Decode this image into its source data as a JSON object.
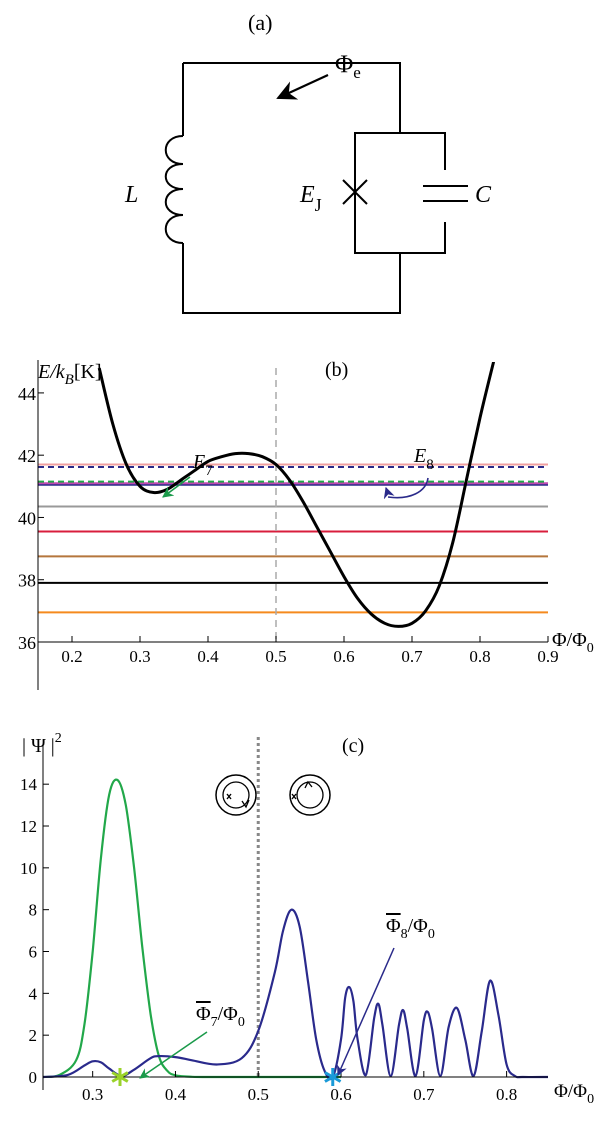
{
  "panel_a": {
    "label": "(a)",
    "flux_symbol": "Φ",
    "flux_sub": "e",
    "inductor": "L",
    "junction": "E",
    "junction_sub": "J",
    "capacitor": "C"
  },
  "panel_b": {
    "label": "(b)",
    "ylabel_main": "E/k",
    "ylabel_sub": "B",
    "ylabel_unit": "[K]",
    "xlabel": "Φ/Φ",
    "xlabel_sub": "0",
    "e7_main": "E",
    "e7_sub": "7",
    "e8_main": "E",
    "e8_sub": "8",
    "colors": {
      "potential": "#000000",
      "dashed_line": "#aaaaaa",
      "e7_arrow": "#1a9a4a",
      "e8_arrow": "#2a2a8a"
    }
  },
  "panel_c": {
    "label": "(c)",
    "ylabel": "| Ψ |",
    "ylabel_sup": "2",
    "xlabel": "Φ/Φ",
    "xlabel_sub": "0",
    "phi7_main": "Φ",
    "phi7_sub": "7",
    "phi7_tail": "/Φ",
    "phi7_tail_sub": "0",
    "phi8_main": "Φ",
    "phi8_sub": "8",
    "phi8_tail": "/Φ",
    "phi8_tail_sub": "0",
    "colors": {
      "psi7": "#22a84a",
      "psi8": "#2a2a8c",
      "star7": "#9ad22a",
      "star8": "#1a9ad8",
      "dotted": "#888888"
    }
  },
  "chart_data": [
    {
      "type": "line",
      "title": "(b)",
      "xlabel": "Φ/Φ0",
      "ylabel": "E/kB [K]",
      "xlim": [
        0.15,
        0.9
      ],
      "ylim": [
        36,
        44.8
      ],
      "x_ticks": [
        "0.2",
        "0.3",
        "0.4",
        "0.5",
        "0.6",
        "0.7",
        "0.8",
        "0.9"
      ],
      "y_ticks": [
        "36",
        "38",
        "40",
        "42",
        "44"
      ],
      "vertical_dashed_line_x": 0.5,
      "potential": {
        "x": [
          0.24,
          0.26,
          0.28,
          0.3,
          0.32,
          0.34,
          0.36,
          0.38,
          0.4,
          0.42,
          0.44,
          0.46,
          0.48,
          0.5,
          0.52,
          0.54,
          0.56,
          0.58,
          0.6,
          0.62,
          0.64,
          0.66,
          0.68,
          0.7,
          0.72,
          0.74,
          0.76,
          0.78,
          0.8,
          0.82
        ],
        "y": [
          44.8,
          43.0,
          41.7,
          41.0,
          40.8,
          40.9,
          41.2,
          41.5,
          41.8,
          41.95,
          42.05,
          42.05,
          41.95,
          41.7,
          41.2,
          40.5,
          39.7,
          38.9,
          38.1,
          37.4,
          36.9,
          36.6,
          36.5,
          36.6,
          37.0,
          37.8,
          39.2,
          41.2,
          43.2,
          45.0
        ]
      },
      "levels": [
        {
          "y": 36.95,
          "color": "#f58a1e",
          "style": "solid"
        },
        {
          "y": 37.9,
          "color": "#000000",
          "style": "solid"
        },
        {
          "y": 38.75,
          "color": "#b5763c",
          "style": "solid"
        },
        {
          "y": 39.55,
          "color": "#d81e3c",
          "style": "solid"
        },
        {
          "y": 40.35,
          "color": "#999999",
          "style": "solid"
        },
        {
          "y": 41.05,
          "color": "#2a2a8a",
          "style": "solid"
        },
        {
          "y": 41.1,
          "color": "#c04ab0",
          "style": "solid"
        },
        {
          "y": 41.15,
          "color": "#22a84a",
          "style": "dashed"
        },
        {
          "y": 41.62,
          "color": "#2a2a8a",
          "style": "dashed"
        },
        {
          "y": 41.7,
          "color": "#f0a0a0",
          "style": "solid"
        }
      ]
    },
    {
      "type": "line",
      "title": "(c)",
      "xlabel": "Φ/Φ0",
      "ylabel": "|Ψ|^2",
      "xlim": [
        0.24,
        0.85
      ],
      "ylim": [
        0,
        15
      ],
      "x_ticks": [
        "0.3",
        "0.4",
        "0.5",
        "0.6",
        "0.7",
        "0.8"
      ],
      "y_ticks": [
        "0",
        "2",
        "4",
        "6",
        "8",
        "10",
        "12",
        "14"
      ],
      "vertical_dotted_line_x": 0.5,
      "markers": [
        {
          "name": "Φ̄7/Φ0",
          "x": 0.333,
          "y": 0
        },
        {
          "name": "Φ̄8/Φ0",
          "x": 0.59,
          "y": 0
        }
      ],
      "series": [
        {
          "x": [
            0.24,
            0.26,
            0.28,
            0.29,
            0.3,
            0.31,
            0.32,
            0.33,
            0.34,
            0.35,
            0.36,
            0.37,
            0.38,
            0.39,
            0.4,
            0.42,
            0.45,
            0.5,
            0.6
          ],
          "y": [
            0,
            0.1,
            0.8,
            2.5,
            6.0,
            10.5,
            13.5,
            14.2,
            13.0,
            10.0,
            6.2,
            3.0,
            1.0,
            0.3,
            0.08,
            0.01,
            0,
            0,
            0
          ]
        },
        {
          "x": [
            0.24,
            0.27,
            0.29,
            0.3,
            0.31,
            0.32,
            0.335,
            0.35,
            0.37,
            0.38,
            0.4,
            0.42,
            0.45,
            0.48,
            0.5,
            0.52,
            0.53,
            0.54,
            0.55,
            0.56,
            0.57,
            0.58,
            0.59,
            0.6,
            0.605,
            0.61,
            0.615,
            0.62,
            0.63,
            0.64,
            0.645,
            0.65,
            0.66,
            0.67,
            0.675,
            0.68,
            0.69,
            0.7,
            0.705,
            0.71,
            0.72,
            0.73,
            0.74,
            0.75,
            0.76,
            0.77,
            0.78,
            0.79,
            0.8,
            0.81,
            0.82,
            0.85
          ],
          "y": [
            0,
            0.1,
            0.55,
            0.75,
            0.7,
            0.4,
            0.05,
            0.35,
            0.9,
            1.0,
            0.95,
            0.8,
            0.6,
            0.9,
            2.2,
            5.0,
            7.0,
            8.0,
            7.2,
            4.6,
            1.8,
            0.3,
            0,
            1.8,
            3.8,
            4.3,
            3.6,
            1.8,
            0.1,
            2.8,
            3.5,
            2.5,
            0.05,
            2.5,
            3.2,
            2.3,
            0.05,
            2.7,
            3.1,
            2.3,
            0.05,
            2.4,
            3.3,
            1.8,
            0.05,
            2.2,
            4.6,
            3.0,
            0.6,
            0.05,
            0,
            0
          ]
        }
      ]
    }
  ]
}
